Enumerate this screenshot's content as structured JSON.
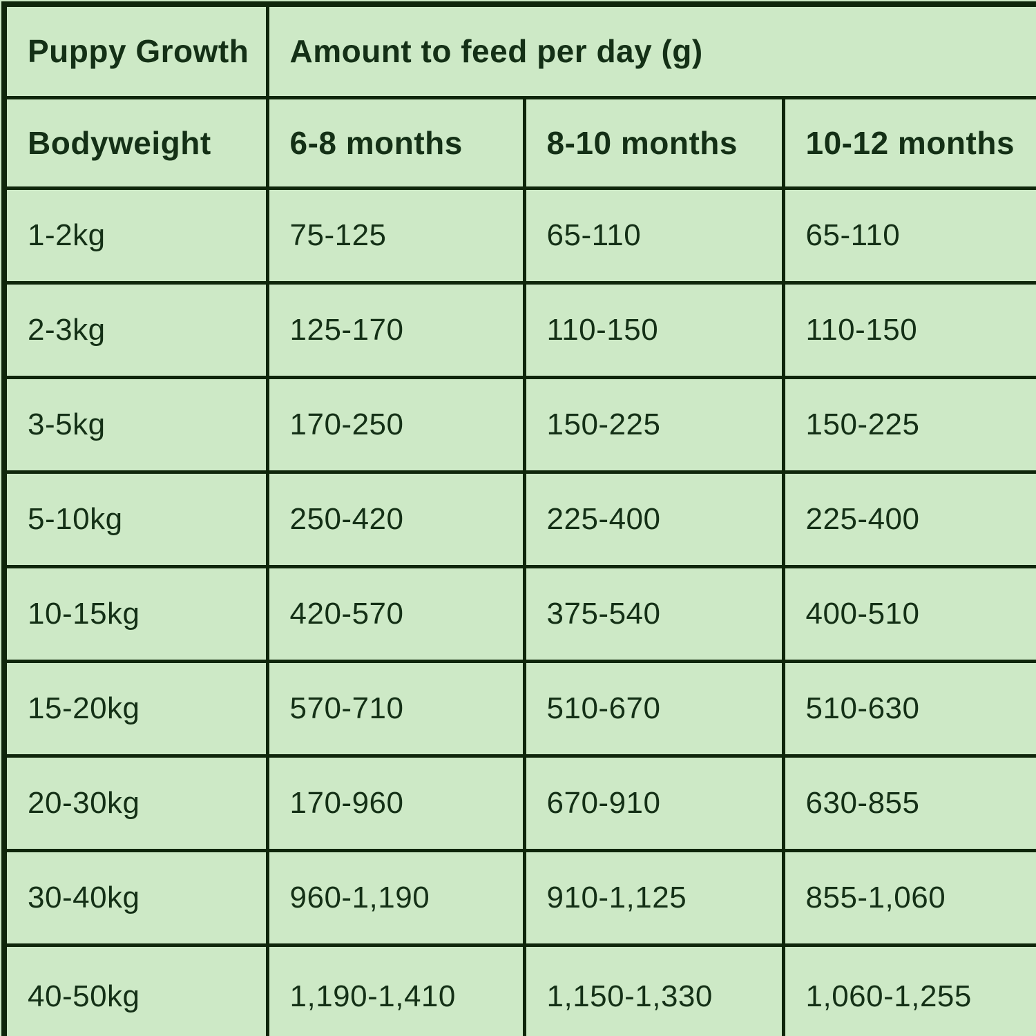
{
  "colors": {
    "background": "#cde9c6",
    "grid_line": "#0f260b",
    "text": "#143016"
  },
  "table": {
    "title_cell": "Puppy Growth",
    "spanning_header": "Amount to feed per day (g)",
    "column_headers": [
      "Bodyweight",
      "6-8 months",
      "8-10 months",
      "10-12 months"
    ],
    "rows": [
      [
        "1-2kg",
        "75-125",
        "65-110",
        "65-110"
      ],
      [
        "2-3kg",
        "125-170",
        "110-150",
        "110-150"
      ],
      [
        "3-5kg",
        "170-250",
        "150-225",
        "150-225"
      ],
      [
        "5-10kg",
        "250-420",
        "225-400",
        "225-400"
      ],
      [
        "10-15kg",
        "420-570",
        "375-540",
        "400-510"
      ],
      [
        "15-20kg",
        "570-710",
        "510-670",
        "510-630"
      ],
      [
        "20-30kg",
        "170-960",
        "670-910",
        "630-855"
      ],
      [
        "30-40kg",
        "960-1,190",
        "910-1,125",
        "855-1,060"
      ],
      [
        "40-50kg",
        "1,190-1,410",
        "1,150-1,330",
        "1,060-1,255"
      ]
    ]
  },
  "chart_data": {
    "type": "table",
    "title": "Puppy Growth",
    "subtitle": "Amount to feed per day (g)",
    "columns": [
      "Bodyweight",
      "6-8 months",
      "8-10 months",
      "10-12 months"
    ],
    "rows": [
      [
        "1-2kg",
        "75-125",
        "65-110",
        "65-110"
      ],
      [
        "2-3kg",
        "125-170",
        "110-150",
        "110-150"
      ],
      [
        "3-5kg",
        "170-250",
        "150-225",
        "150-225"
      ],
      [
        "5-10kg",
        "250-420",
        "225-400",
        "225-400"
      ],
      [
        "10-15kg",
        "420-570",
        "375-540",
        "400-510"
      ],
      [
        "15-20kg",
        "570-710",
        "510-670",
        "510-630"
      ],
      [
        "20-30kg",
        "170-960",
        "670-910",
        "630-855"
      ],
      [
        "30-40kg",
        "960-1,190",
        "910-1,125",
        "855-1,060"
      ],
      [
        "40-50kg",
        "1,190-1,410",
        "1,150-1,330",
        "1,060-1,255"
      ]
    ]
  }
}
